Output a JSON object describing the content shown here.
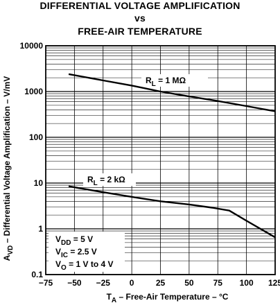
{
  "chart_data": {
    "type": "line",
    "title_lines": [
      "DIFFERENTIAL VOLTAGE AMPLIFICATION",
      "vs",
      "FREE-AIR TEMPERATURE"
    ],
    "xlabel": {
      "main": "T",
      "sub": "A",
      "rest": " – Free-Air Temperature  – °C"
    },
    "ylabel": {
      "main": "A",
      "sub": "VD",
      "rest": " – Differential Voltage Amplification – V/mV"
    },
    "xlim": [
      -75,
      125
    ],
    "ylim": [
      0.1,
      10000
    ],
    "y_scale": "log",
    "grid": true,
    "x_ticks": [
      -75,
      -50,
      -25,
      0,
      25,
      50,
      75,
      100,
      125
    ],
    "x_tick_labels": [
      "−75",
      "−50",
      "−25",
      "0",
      "25",
      "50",
      "75",
      "100",
      "125"
    ],
    "y_ticks": [
      0.1,
      1,
      10,
      100,
      1000,
      10000
    ],
    "y_tick_labels": [
      "0.1",
      "1",
      "10",
      "100",
      "1000",
      "10000"
    ],
    "series": [
      {
        "name": "R_L = 1 MΩ",
        "label": {
          "main": "R",
          "sub": "L",
          "rest": " = 1 MΩ"
        },
        "x": [
          -55,
          -25,
          0,
          25,
          50,
          75,
          100,
          125
        ],
        "y": [
          2400,
          1750,
          1350,
          1000,
          780,
          620,
          480,
          370
        ]
      },
      {
        "name": "R_L = 2 kΩ",
        "label": {
          "main": "R",
          "sub": "L",
          "rest": " = 2 kΩ"
        },
        "x": [
          -55,
          -25,
          0,
          25,
          50,
          70,
          85,
          100,
          125
        ],
        "y": [
          8.5,
          6.3,
          5.0,
          4.0,
          3.4,
          2.9,
          2.5,
          1.5,
          0.65
        ]
      }
    ],
    "conditions": [
      {
        "main": "V",
        "sub": "DD",
        "rest": " = 5 V"
      },
      {
        "main": "V",
        "sub": "IC",
        "rest": " = 2.5 V"
      },
      {
        "main": "V",
        "sub": "O",
        "rest": " = 1 V to 4 V"
      }
    ]
  }
}
